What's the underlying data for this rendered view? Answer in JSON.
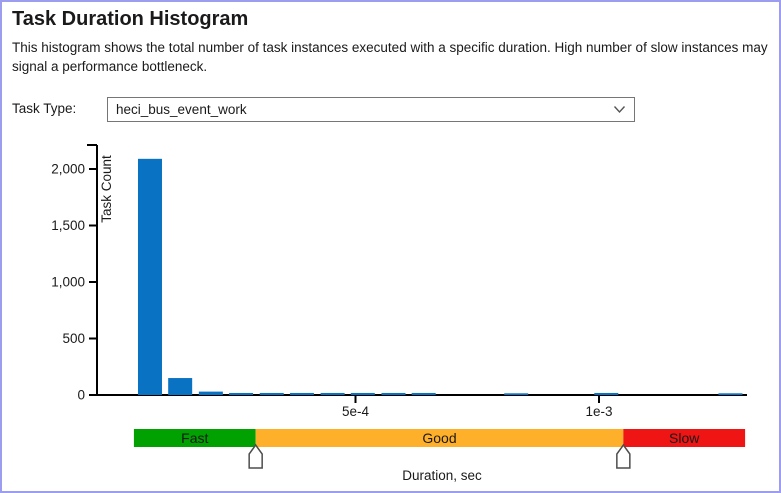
{
  "header": {
    "title": "Task Duration Histogram",
    "description": "This histogram shows the total number of task instances executed with a specific duration. High number of slow instances may signal a performance bottleneck."
  },
  "task_type": {
    "label": "Task Type:",
    "selected": "heci_bus_event_work"
  },
  "chart_data": {
    "type": "bar",
    "ylabel": "Task Count",
    "xlabel": "Duration, sec",
    "ylim": [
      0,
      2210
    ],
    "xlim": [
      0,
      0.0013
    ],
    "grid": false,
    "bar_color": "#0a72c2",
    "axis_color": "#000000",
    "y_ticks": [
      {
        "value": 0,
        "label": "0"
      },
      {
        "value": 500,
        "label": "500"
      },
      {
        "value": 1000,
        "label": "1,000"
      },
      {
        "value": 1500,
        "label": "1,500"
      },
      {
        "value": 2000,
        "label": "2,000"
      }
    ],
    "x_ticks": [
      {
        "value": 0.0005,
        "label": "5e-4"
      },
      {
        "value": 0.001,
        "label": "1e-3"
      }
    ],
    "bars": [
      {
        "duration": 7.8e-05,
        "count": 2090
      },
      {
        "duration": 0.00014,
        "count": 150
      },
      {
        "duration": 0.000203,
        "count": 30
      },
      {
        "duration": 0.000265,
        "count": 18
      },
      {
        "duration": 0.000328,
        "count": 18
      },
      {
        "duration": 0.00039,
        "count": 18
      },
      {
        "duration": 0.000453,
        "count": 18
      },
      {
        "duration": 0.000515,
        "count": 18
      },
      {
        "duration": 0.000578,
        "count": 18
      },
      {
        "duration": 0.00064,
        "count": 18
      },
      {
        "duration": 0.00083,
        "count": 15
      },
      {
        "duration": 0.001015,
        "count": 18
      },
      {
        "duration": 0.00127,
        "count": 15
      }
    ]
  },
  "slider": {
    "segments": [
      {
        "label": "Fast",
        "color": "#00a100",
        "from": 4.5e-05,
        "to": 0.000295
      },
      {
        "label": "Good",
        "color": "#ffb02a",
        "from": 0.000295,
        "to": 0.00105
      },
      {
        "label": "Slow",
        "color": "#ef1515",
        "from": 0.00105,
        "to": 0.0013
      }
    ],
    "handles": [
      0.000295,
      0.00105
    ],
    "handle_fill": "#ffffff",
    "handle_stroke": "#4d4d4d"
  }
}
